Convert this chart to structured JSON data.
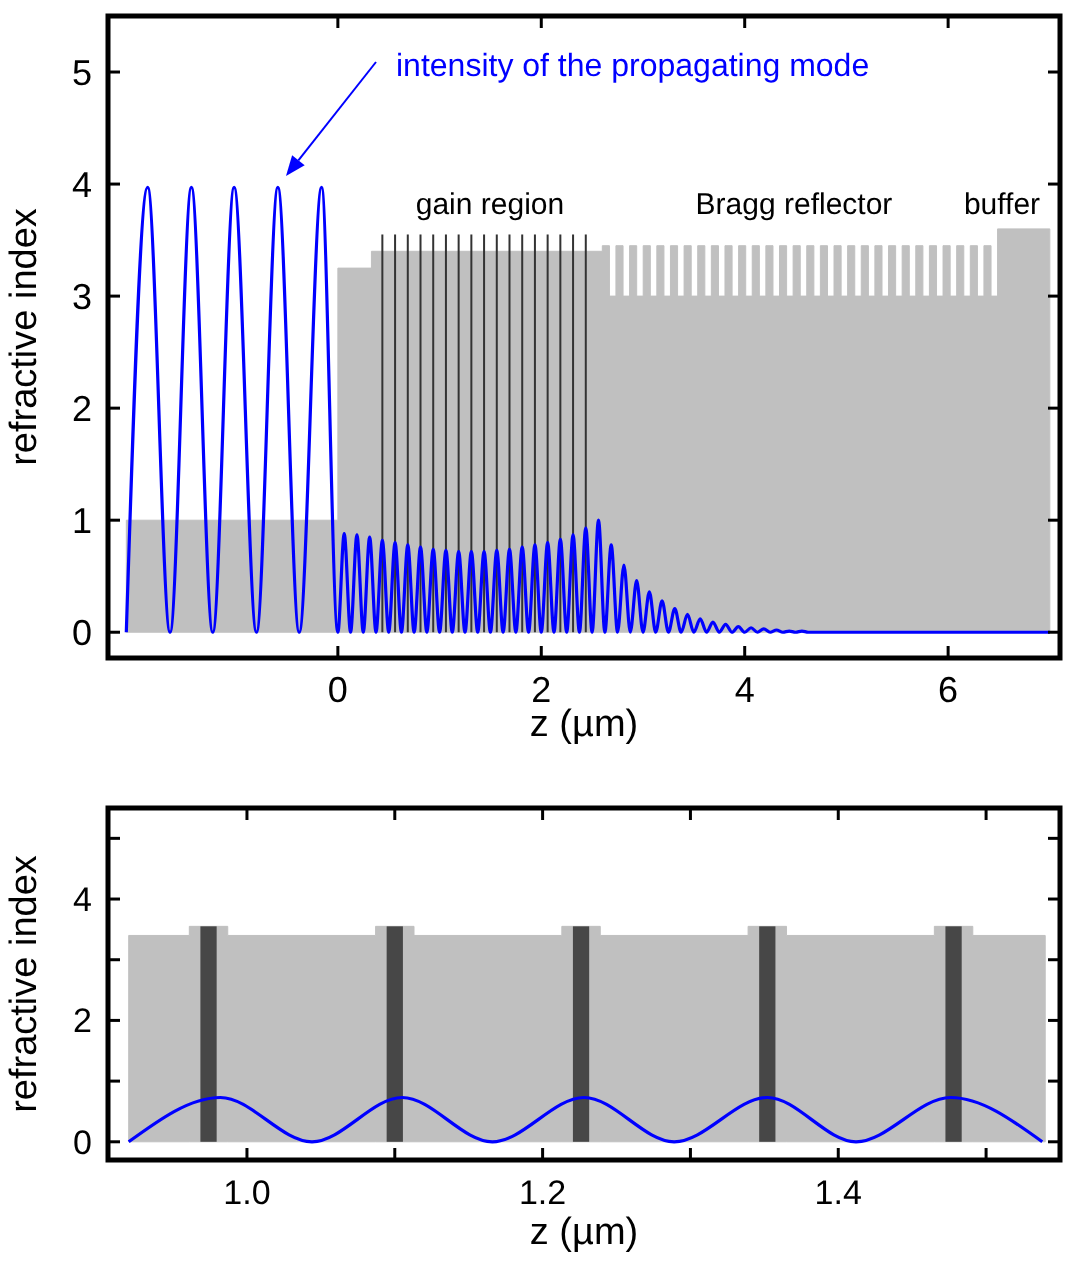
{
  "chart_data": [
    {
      "type": "line",
      "xlabel": "z (µm)",
      "ylabel": "refractive index",
      "xlim": [
        -2.26,
        7.1
      ],
      "ylim": [
        -0.23,
        5.5
      ],
      "xticks": [
        0,
        2,
        4,
        6
      ],
      "yticks": [
        0,
        1,
        2,
        3,
        4,
        5
      ],
      "grid": false,
      "annotations": [
        "intensity of the propagating mode",
        "gain region",
        "Bragg reflector",
        "buffer"
      ],
      "series": [
        {
          "type": "area",
          "color": "#c0c0c0",
          "x": [
            -2.08,
            0,
            0,
            0.33,
            0.33,
            2.6,
            2.6,
            2.67,
            2.67,
            2.734,
            2.734,
            2.804,
            2.804,
            2.868,
            2.868,
            2.938,
            2.938,
            3.002,
            3.002,
            3.072,
            3.072,
            3.136,
            3.136,
            3.206,
            3.206,
            3.27,
            3.27,
            3.34,
            3.34,
            3.404,
            3.404,
            3.474,
            3.474,
            3.538,
            3.538,
            3.608,
            3.608,
            3.672,
            3.672,
            3.742,
            3.742,
            3.806,
            3.806,
            3.876,
            3.876,
            3.94,
            3.94,
            4.01,
            4.01,
            4.074,
            4.074,
            4.144,
            4.144,
            4.208,
            4.208,
            4.278,
            4.278,
            4.342,
            4.342,
            4.412,
            4.412,
            4.476,
            4.476,
            4.546,
            4.546,
            4.61,
            4.61,
            4.68,
            4.68,
            4.744,
            4.744,
            4.814,
            4.814,
            4.878,
            4.878,
            4.948,
            4.948,
            5.012,
            5.012,
            5.082,
            5.082,
            5.146,
            5.146,
            5.216,
            5.216,
            5.28,
            5.28,
            5.35,
            5.35,
            5.414,
            5.414,
            5.484,
            5.484,
            5.548,
            5.548,
            5.618,
            5.618,
            5.682,
            5.682,
            5.752,
            5.752,
            5.816,
            5.816,
            5.886,
            5.886,
            5.95,
            5.95,
            6.02,
            6.02,
            6.084,
            6.084,
            6.154,
            6.154,
            6.218,
            6.218,
            6.288,
            6.288,
            6.352,
            6.352,
            6.422,
            6.422,
            6.486,
            6.486,
            7
          ],
          "values": [
            1,
            1,
            3.25,
            3.25,
            3.4,
            3.4,
            3.45,
            3.45,
            3,
            3,
            3.45,
            3.45,
            3,
            3,
            3.45,
            3.45,
            3,
            3,
            3.45,
            3.45,
            3,
            3,
            3.45,
            3.45,
            3,
            3,
            3.45,
            3.45,
            3,
            3,
            3.45,
            3.45,
            3,
            3,
            3.45,
            3.45,
            3,
            3,
            3.45,
            3.45,
            3,
            3,
            3.45,
            3.45,
            3,
            3,
            3.45,
            3.45,
            3,
            3,
            3.45,
            3.45,
            3,
            3,
            3.45,
            3.45,
            3,
            3,
            3.45,
            3.45,
            3,
            3,
            3.45,
            3.45,
            3,
            3,
            3.45,
            3.45,
            3,
            3,
            3.45,
            3.45,
            3,
            3,
            3.45,
            3.45,
            3,
            3,
            3.45,
            3.45,
            3,
            3,
            3.45,
            3.45,
            3,
            3,
            3.45,
            3.45,
            3,
            3,
            3.45,
            3.45,
            3,
            3,
            3.45,
            3.45,
            3,
            3,
            3.45,
            3.45,
            3,
            3,
            3.45,
            3.45,
            3,
            3,
            3.45,
            3.45,
            3,
            3,
            3.45,
            3.45,
            3,
            3,
            3.45,
            3.45,
            3,
            3,
            3.45,
            3.45,
            3,
            3,
            3.6,
            3.6
          ]
        },
        {
          "type": "bar",
          "color": "#333333",
          "x": [
            0.4375,
            0.5625,
            0.6875,
            0.8125,
            0.9375,
            1.0625,
            1.1875,
            1.3125,
            1.4375,
            1.5625,
            1.6875,
            1.8125,
            1.9375,
            2.0625,
            2.1875,
            2.3125,
            2.4375
          ],
          "values": [
            3.55,
            3.55,
            3.55,
            3.55,
            3.55,
            3.55,
            3.55,
            3.55,
            3.55,
            3.55,
            3.55,
            3.55,
            3.55,
            3.55,
            3.55,
            3.55,
            3.55
          ]
        },
        {
          "color": "#0000ff",
          "x": [
            -2.08,
            -1.87,
            -1.65,
            -1.44,
            -1.23,
            -1.02,
            -0.8,
            -0.59,
            -0.38,
            -0.16,
            0,
            0.0625,
            0.125,
            0.1875,
            0.25,
            0.3125,
            0.375,
            0.4375,
            0.5,
            0.5625,
            0.625,
            0.6875,
            0.75,
            0.8125,
            0.875,
            0.9375,
            1,
            1.0625,
            1.125,
            1.1875,
            1.25,
            1.3125,
            1.375,
            1.4375,
            1.5,
            1.5625,
            1.625,
            1.6875,
            1.75,
            1.8125,
            1.875,
            1.9375,
            2,
            2.0625,
            2.125,
            2.1875,
            2.25,
            2.3125,
            2.375,
            2.4375,
            2.5,
            2.5625,
            2.625,
            2.6875,
            2.75,
            2.8125,
            2.875,
            2.9375,
            3,
            3.0625,
            3.125,
            3.1875,
            3.25,
            3.3125,
            3.375,
            3.4375,
            3.5,
            3.5625,
            3.625,
            3.6875,
            3.75,
            3.8125,
            3.875,
            3.9375,
            4,
            4.0625,
            4.125,
            4.1875,
            4.25,
            4.3125,
            4.375,
            4.4375,
            4.5,
            4.5625,
            4.625,
            7
          ],
          "values": [
            0,
            3.97,
            0,
            3.97,
            0,
            3.97,
            0,
            3.97,
            0,
            3.97,
            0,
            0.88,
            0,
            0.87,
            0,
            0.85,
            0,
            0.82,
            0,
            0.8,
            0,
            0.78,
            0,
            0.76,
            0,
            0.74,
            0,
            0.73,
            0,
            0.72,
            0,
            0.72,
            0,
            0.72,
            0,
            0.73,
            0,
            0.74,
            0,
            0.76,
            0,
            0.78,
            0,
            0.8,
            0,
            0.83,
            0,
            0.87,
            0,
            0.93,
            0,
            1,
            0,
            0.78,
            0,
            0.6,
            0,
            0.46,
            0,
            0.36,
            0,
            0.28,
            0,
            0.21,
            0,
            0.16,
            0,
            0.12,
            0,
            0.09,
            0,
            0.07,
            0,
            0.05,
            0,
            0.04,
            0,
            0.03,
            0,
            0.02,
            0,
            0.01,
            0,
            0.01,
            0,
            0
          ]
        }
      ]
    },
    {
      "type": "line",
      "xlabel": "z (µm)",
      "ylabel": "refractive index",
      "xlim": [
        0.906,
        1.55
      ],
      "ylim": [
        -0.3,
        5.5
      ],
      "xticks": [
        {
          "value": 1,
          "label": "1.0"
        },
        {
          "value": 1.1,
          "label": null
        },
        {
          "value": 1.2,
          "label": "1.2"
        },
        {
          "value": 1.3,
          "label": null
        },
        {
          "value": 1.4,
          "label": "1.4"
        },
        {
          "value": 1.5,
          "label": null
        }
      ],
      "yticks": [
        0,
        {
          "value": 1,
          "label": null
        },
        2,
        {
          "value": 3,
          "label": null
        },
        4,
        {
          "value": 5,
          "label": null
        }
      ],
      "grid": false,
      "series": [
        {
          "type": "area",
          "color": "#c0c0c0",
          "x": [
            0.92,
            0.961,
            0.961,
            0.987,
            0.987,
            1.087,
            1.087,
            1.113,
            1.113,
            1.213,
            1.213,
            1.239,
            1.239,
            1.339,
            1.339,
            1.365,
            1.365,
            1.465,
            1.465,
            1.491,
            1.491,
            1.54
          ],
          "values": [
            3.4,
            3.4,
            3.55,
            3.55,
            3.4,
            3.4,
            3.55,
            3.55,
            3.4,
            3.4,
            3.55,
            3.55,
            3.4,
            3.4,
            3.55,
            3.55,
            3.4,
            3.4,
            3.55,
            3.55,
            3.4,
            3.4
          ]
        },
        {
          "type": "bar",
          "color": "#474747",
          "x": [
            0.974,
            1.1,
            1.226,
            1.352,
            1.478
          ],
          "values": [
            3.55,
            3.55,
            3.55,
            3.55,
            3.55
          ]
        },
        {
          "color": "#0000ff",
          "x": [
            0.92,
            0.982,
            1.044,
            1.105,
            1.166,
            1.228,
            1.289,
            1.352,
            1.412,
            1.476,
            1.538
          ],
          "values": [
            0,
            0.73,
            0,
            0.73,
            0,
            0.73,
            0,
            0.73,
            0,
            0.73,
            0
          ]
        }
      ]
    }
  ]
}
